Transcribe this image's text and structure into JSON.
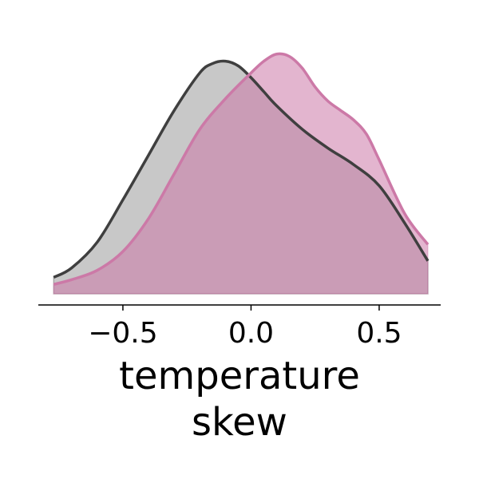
{
  "chart_data": {
    "type": "area",
    "xlabel_lines": [
      "temperature",
      "skew"
    ],
    "xlim": [
      -0.83,
      0.74
    ],
    "ylim": [
      0,
      1.06
    ],
    "xticks": [
      {
        "value": -0.5,
        "label": "−0.5"
      },
      {
        "value": 0.0,
        "label": "0.0"
      },
      {
        "value": 0.5,
        "label": "0.5"
      }
    ],
    "grid": false,
    "legend": "none",
    "x_start": -0.77,
    "x_end": 0.69,
    "series": [
      {
        "line_color": "#3f3f3f",
        "fill_color": "#9a9a9a",
        "x": [
          -0.77,
          -0.7,
          -0.6,
          -0.5,
          -0.4,
          -0.3,
          -0.2,
          -0.15,
          -0.1,
          -0.05,
          0.0,
          0.05,
          0.1,
          0.2,
          0.3,
          0.4,
          0.5,
          0.6,
          0.69
        ],
        "y": [
          0.07,
          0.11,
          0.22,
          0.4,
          0.59,
          0.78,
          0.94,
          0.98,
          0.99,
          0.97,
          0.92,
          0.86,
          0.8,
          0.7,
          0.62,
          0.55,
          0.46,
          0.3,
          0.14
        ]
      },
      {
        "line_color": "#cc79a7",
        "fill_color": "#cc79a7",
        "x": [
          -0.77,
          -0.7,
          -0.6,
          -0.5,
          -0.4,
          -0.3,
          -0.2,
          -0.1,
          0.0,
          0.05,
          0.1,
          0.15,
          0.2,
          0.25,
          0.3,
          0.35,
          0.4,
          0.45,
          0.5,
          0.6,
          0.69
        ],
        "y": [
          0.04,
          0.06,
          0.1,
          0.18,
          0.32,
          0.51,
          0.7,
          0.83,
          0.94,
          0.99,
          1.02,
          1.01,
          0.96,
          0.88,
          0.82,
          0.78,
          0.74,
          0.68,
          0.57,
          0.34,
          0.21
        ]
      }
    ]
  }
}
